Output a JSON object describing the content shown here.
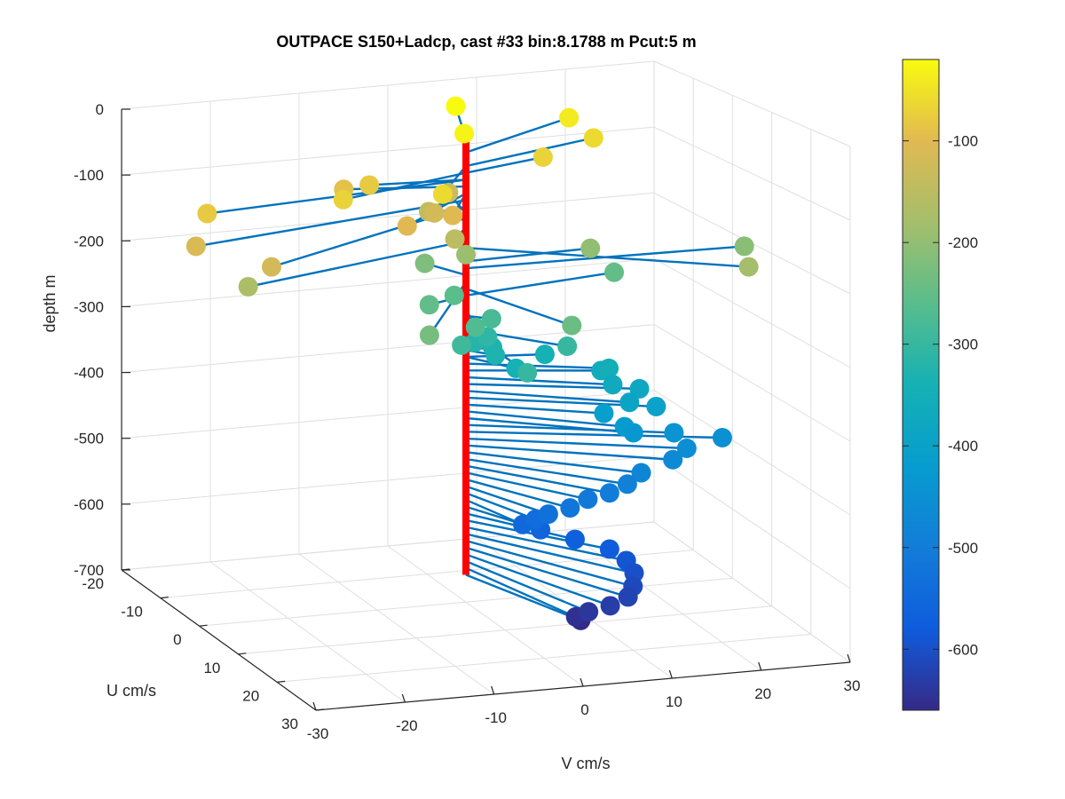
{
  "chart_data": {
    "type": "3d-stem-scatter",
    "title": "OUTPACE S150+Ladcp, cast #33 bin:8.1788 m  Pcut:5 m",
    "xlabel": "V cm/s",
    "ylabel": "U cm/s",
    "zlabel": "depth m",
    "xlim": [
      -30,
      30
    ],
    "ylim": [
      -20,
      30
    ],
    "zlim": [
      -700,
      0
    ],
    "x_ticks": [
      "-30",
      "-20",
      "-10",
      "0",
      "10",
      "20",
      "30"
    ],
    "y_ticks": [
      "-20",
      "-10",
      "0",
      "10",
      "20",
      "30"
    ],
    "z_ticks": [
      "0",
      "-100",
      "-200",
      "-300",
      "-400",
      "-500",
      "-600",
      "-700"
    ],
    "colorbar": {
      "label_ticks": [
        "-100",
        "-200",
        "-300",
        "-400",
        "-500",
        "-600"
      ],
      "range": [
        -660,
        -20
      ],
      "colormap": "parula"
    },
    "grid": true,
    "axis_line_color": "#ff0000",
    "vector_color": "#0072bd",
    "points": [
      {
        "u": -14,
        "v": 5,
        "z": -20
      },
      {
        "u": -5,
        "v": 2,
        "z": -30
      },
      {
        "u": -10,
        "v": 16,
        "z": -40
      },
      {
        "u": -6,
        "v": 17,
        "z": -60
      },
      {
        "u": 10,
        "v": -7,
        "z": -60
      },
      {
        "u": 5,
        "v": -16,
        "z": -70
      },
      {
        "u": -3,
        "v": 10,
        "z": -70
      },
      {
        "u": 2,
        "v": -30,
        "z": -80
      },
      {
        "u": -2,
        "v": -10,
        "z": -80
      },
      {
        "u": -4,
        "v": -12,
        "z": -90
      },
      {
        "u": 8,
        "v": -5,
        "z": -100
      },
      {
        "u": 10,
        "v": -11,
        "z": -100
      },
      {
        "u": 6,
        "v": -33,
        "z": -110
      },
      {
        "u": 14,
        "v": -28,
        "z": -120
      },
      {
        "u": 1,
        "v": -4,
        "z": -120
      },
      {
        "u": -9,
        "v": 2,
        "z": -130
      },
      {
        "u": -5,
        "v": -2,
        "z": -140
      },
      {
        "u": 4,
        "v": -3,
        "z": -150
      },
      {
        "u": 8,
        "v": -28,
        "z": -170
      },
      {
        "u": 20,
        "v": 23,
        "z": -180
      },
      {
        "u": 0,
        "v": 0,
        "z": -190
      },
      {
        "u": 0,
        "v": 14,
        "z": -200
      },
      {
        "u": 3,
        "v": 30,
        "z": -210
      },
      {
        "u": -6,
        "v": -2,
        "z": -220
      },
      {
        "u": 18,
        "v": -12,
        "z": -230
      },
      {
        "u": 18,
        "v": 4,
        "z": -240
      },
      {
        "u": 2,
        "v": -5,
        "z": -250
      },
      {
        "u": -3,
        "v": 18,
        "z": -250
      },
      {
        "u": -3,
        "v": 0,
        "z": -260
      },
      {
        "u": 7,
        "v": -2,
        "z": -270
      },
      {
        "u": 2,
        "v": 2,
        "z": -280
      },
      {
        "u": 8,
        "v": -4,
        "z": -290
      },
      {
        "u": 10,
        "v": 7,
        "z": -300
      },
      {
        "u": 18,
        "v": -1,
        "z": -300
      },
      {
        "u": 1,
        "v": 2,
        "z": -310
      },
      {
        "u": 0,
        "v": 1,
        "z": -320
      },
      {
        "u": 0,
        "v": 3,
        "z": -330
      },
      {
        "u": 3,
        "v": 2,
        "z": -330
      },
      {
        "u": 2,
        "v": 8,
        "z": -340
      },
      {
        "u": 6,
        "v": 3,
        "z": -340
      },
      {
        "u": 7,
        "v": 13,
        "z": -350
      },
      {
        "u": 5,
        "v": 13,
        "z": -360
      },
      {
        "u": 8,
        "v": 13,
        "z": -370
      },
      {
        "u": 8,
        "v": 16,
        "z": -380
      },
      {
        "u": 10,
        "v": 14,
        "z": -390
      },
      {
        "u": 10,
        "v": 17,
        "z": -400
      },
      {
        "u": 8,
        "v": 12,
        "z": -410
      },
      {
        "u": 11,
        "v": 13,
        "z": -420
      },
      {
        "u": 11,
        "v": 14,
        "z": -430
      },
      {
        "u": 10,
        "v": 19,
        "z": -440
      },
      {
        "u": 11,
        "v": 24,
        "z": -450
      },
      {
        "u": 11,
        "v": 20,
        "z": -460
      },
      {
        "u": 12,
        "v": 18,
        "z": -470
      },
      {
        "u": 13,
        "v": 14,
        "z": -480
      },
      {
        "u": 14,
        "v": 12,
        "z": -490
      },
      {
        "u": 14,
        "v": 10,
        "z": -500
      },
      {
        "u": 13,
        "v": 8,
        "z": -510
      },
      {
        "u": 13,
        "v": 6,
        "z": -520
      },
      {
        "u": 12,
        "v": 4,
        "z": -530
      },
      {
        "u": 11,
        "v": 3,
        "z": -540
      },
      {
        "u": 10,
        "v": 2,
        "z": -550
      },
      {
        "u": 10,
        "v": 4,
        "z": -560
      },
      {
        "u": 12,
        "v": 7,
        "z": -570
      },
      {
        "u": 14,
        "v": 10,
        "z": -580
      },
      {
        "u": 16,
        "v": 11,
        "z": -590
      },
      {
        "u": 18,
        "v": 11,
        "z": -600
      },
      {
        "u": 20,
        "v": 10,
        "z": -610
      },
      {
        "u": 21,
        "v": 9,
        "z": -620
      },
      {
        "u": 21,
        "v": 7,
        "z": -630
      },
      {
        "u": 20,
        "v": 5,
        "z": -640
      },
      {
        "u": 19,
        "v": 4,
        "z": -650
      },
      {
        "u": 18,
        "v": 5,
        "z": -660
      }
    ]
  }
}
